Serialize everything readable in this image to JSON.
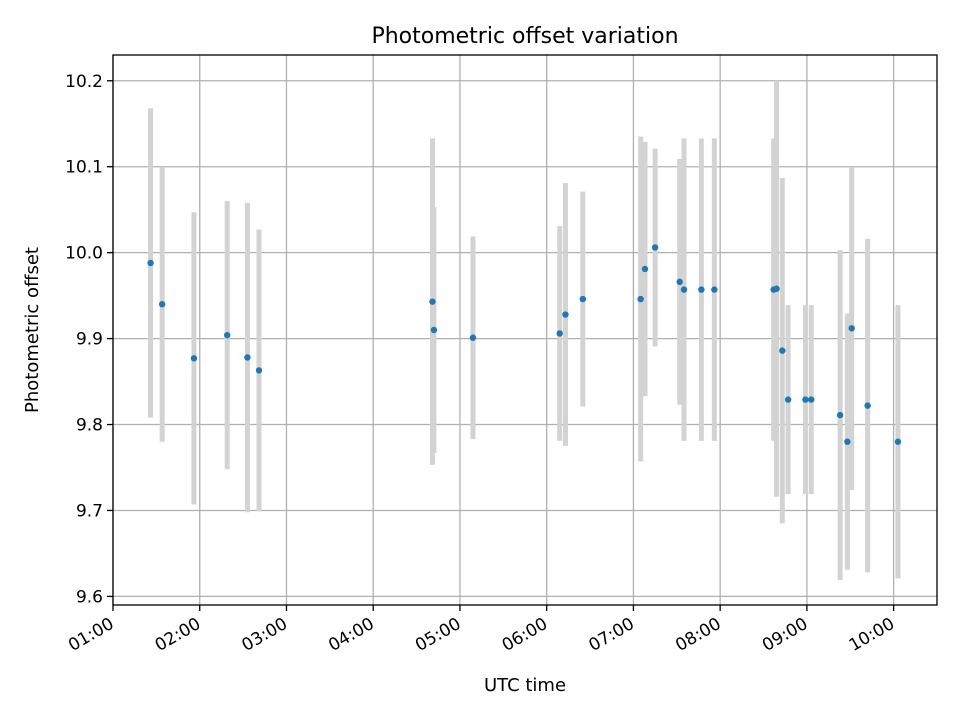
{
  "chart_data": {
    "type": "scatter",
    "title": "Photometric offset variation",
    "xlabel": "UTC time",
    "ylabel": "Photometric offset",
    "xlim": [
      "01:00",
      "10:30"
    ],
    "ylim": [
      9.59,
      10.23
    ],
    "x_ticks": [
      "01:00",
      "02:00",
      "03:00",
      "04:00",
      "05:00",
      "06:00",
      "07:00",
      "08:00",
      "09:00",
      "10:00"
    ],
    "y_ticks": [
      9.6,
      9.7,
      9.8,
      9.9,
      10.0,
      10.1,
      10.2
    ],
    "grid": true,
    "marker_color": "#1f77b4",
    "errorbar_color": "#d3d3d3",
    "points": [
      {
        "t": "01:26",
        "y": 9.988,
        "err": 0.18
      },
      {
        "t": "01:34",
        "y": 9.94,
        "err": 0.16
      },
      {
        "t": "01:56",
        "y": 9.877,
        "err": 0.17
      },
      {
        "t": "02:19",
        "y": 9.904,
        "err": 0.156
      },
      {
        "t": "02:33",
        "y": 9.878,
        "err": 0.18
      },
      {
        "t": "02:41",
        "y": 9.863,
        "err": 0.164
      },
      {
        "t": "04:41",
        "y": 9.943,
        "err": 0.19
      },
      {
        "t": "04:42",
        "y": 9.91,
        "err": 0.143
      },
      {
        "t": "05:09",
        "y": 9.901,
        "err": 0.118
      },
      {
        "t": "06:09",
        "y": 9.906,
        "err": 0.125
      },
      {
        "t": "06:13",
        "y": 9.928,
        "err": 0.153
      },
      {
        "t": "06:25",
        "y": 9.946,
        "err": 0.125
      },
      {
        "t": "07:05",
        "y": 9.946,
        "err": 0.189
      },
      {
        "t": "07:08",
        "y": 9.981,
        "err": 0.148
      },
      {
        "t": "07:15",
        "y": 10.006,
        "err": 0.115
      },
      {
        "t": "07:32",
        "y": 9.966,
        "err": 0.143
      },
      {
        "t": "07:35",
        "y": 9.957,
        "err": 0.176
      },
      {
        "t": "07:47",
        "y": 9.957,
        "err": 0.176
      },
      {
        "t": "07:56",
        "y": 9.957,
        "err": 0.176
      },
      {
        "t": "08:37",
        "y": 9.957,
        "err": 0.176
      },
      {
        "t": "08:39",
        "y": 9.958,
        "err": 0.242
      },
      {
        "t": "08:43",
        "y": 9.886,
        "err": 0.201
      },
      {
        "t": "08:47",
        "y": 9.829,
        "err": 0.11
      },
      {
        "t": "08:59",
        "y": 9.829,
        "err": 0.11
      },
      {
        "t": "09:03",
        "y": 9.829,
        "err": 0.11
      },
      {
        "t": "09:23",
        "y": 9.811,
        "err": 0.192
      },
      {
        "t": "09:28",
        "y": 9.78,
        "err": 0.149
      },
      {
        "t": "09:31",
        "y": 9.912,
        "err": 0.188
      },
      {
        "t": "09:42",
        "y": 9.822,
        "err": 0.194
      },
      {
        "t": "10:03",
        "y": 9.78,
        "err": 0.159
      }
    ]
  }
}
